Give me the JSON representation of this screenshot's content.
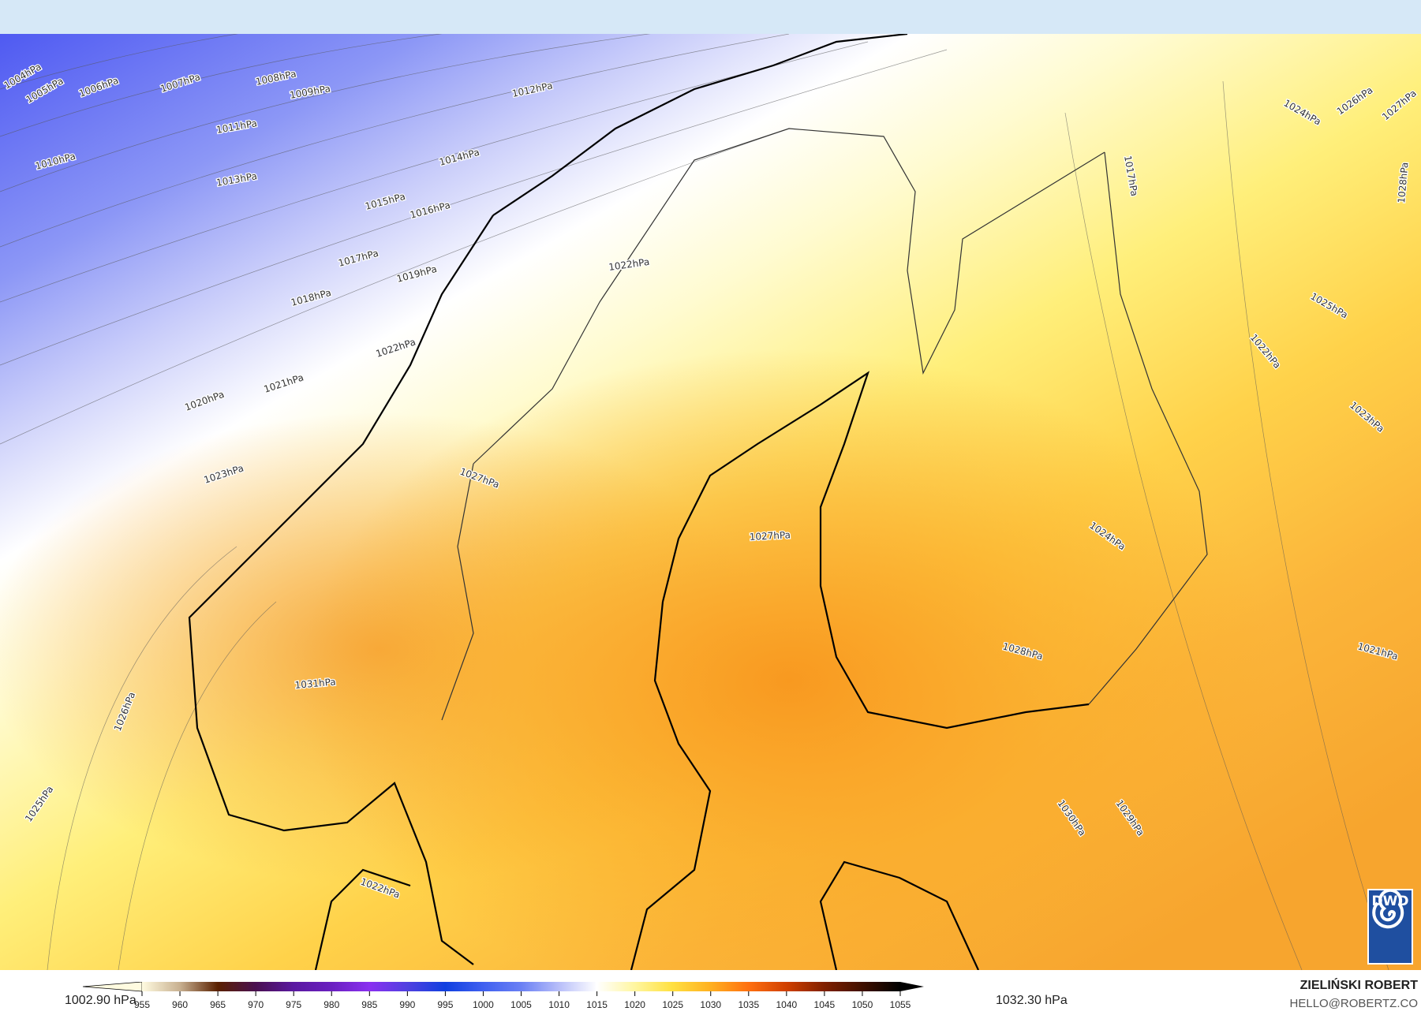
{
  "map": {
    "isobar_labels": [
      "1004hPa",
      "1005hPa",
      "1006hPa",
      "1007hPa",
      "1008hPa",
      "1009hPa",
      "1010hPa",
      "1011hPa",
      "1012hPa",
      "1013hPa",
      "1014hPa",
      "1015hPa",
      "1016hPa",
      "1017hPa",
      "1018hPa",
      "1019hPa",
      "1020hPa",
      "1021hPa",
      "1022hPa",
      "1022hPa",
      "1023hPa",
      "1027hPa",
      "1027hPa",
      "1031hPa",
      "1026hPa",
      "1025hPa",
      "1022hPa",
      "1024hPa",
      "1028hPa",
      "1030hPa",
      "1029hPa",
      "1021hPa",
      "1023hPa",
      "1022hPa",
      "1025hPa",
      "1024hPa",
      "1026hPa",
      "1027hPa",
      "1028hPa",
      "1017hPa"
    ],
    "logo": "DWD"
  },
  "legend": {
    "min_label": "1002.90 hPa",
    "max_label": "1032.30 hPa",
    "ticks": [
      "955",
      "960",
      "965",
      "970",
      "975",
      "980",
      "985",
      "990",
      "995",
      "1000",
      "1005",
      "1010",
      "1015",
      "1020",
      "1025",
      "1030",
      "1035",
      "1040",
      "1045",
      "1050",
      "1055"
    ],
    "colors": [
      "#fffbe0",
      "#c8b090",
      "#5a2000",
      "#4a1050",
      "#5a18a0",
      "#6a20c0",
      "#8a30f0",
      "#5040e0",
      "#1040e0",
      "#4060f0",
      "#6a80f4",
      "#b8bef9",
      "#ffffff",
      "#fff6a0",
      "#ffe040",
      "#ffb020",
      "#ff7010",
      "#d04000",
      "#802000",
      "#401000",
      "#000000"
    ]
  },
  "credits": {
    "author": "ZIELIŃSKI ROBERT",
    "email": "HELLO@ROBERTZ.CO"
  }
}
